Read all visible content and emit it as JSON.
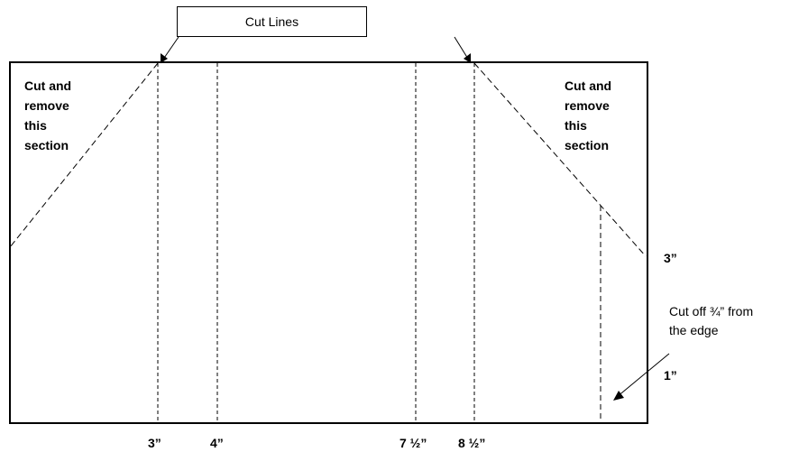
{
  "callout": {
    "text": "Cut Lines"
  },
  "left_note": {
    "lines": [
      "Cut and",
      "remove",
      "this",
      "section"
    ]
  },
  "right_note": {
    "lines": [
      "Cut and",
      "remove",
      "this",
      "section"
    ]
  },
  "edge_note": {
    "lines": [
      "Cut off ¾” from",
      "the edge"
    ]
  },
  "side_marks": {
    "top": "3”",
    "bottom": "1”"
  },
  "bottom_marks": [
    "3”",
    "4”",
    "7 ½”",
    "8 ½”"
  ]
}
